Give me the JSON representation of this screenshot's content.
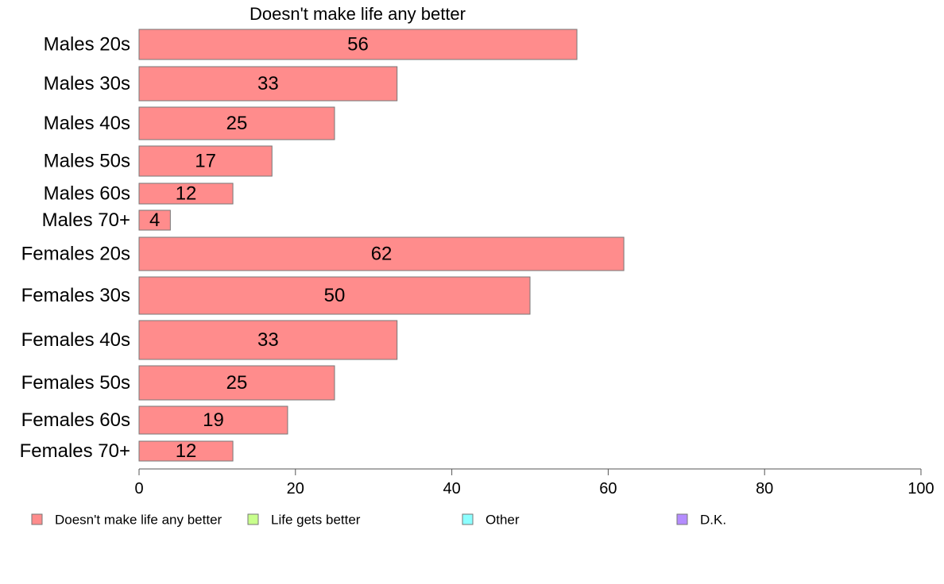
{
  "chart_data": {
    "type": "bar",
    "orientation": "horizontal",
    "title": "Doesn't make life any better",
    "categories": [
      "Males 20s",
      "Males 30s",
      "Males 40s",
      "Males 50s",
      "Males 60s",
      "Males 70+",
      "Females 20s",
      "Females 30s",
      "Females 40s",
      "Females 50s",
      "Females 60s",
      "Females 70+"
    ],
    "series": [
      {
        "name": "Doesn't make life any better",
        "color": "#ff8c8c",
        "values": [
          56,
          33,
          25,
          17,
          12,
          4,
          62,
          50,
          33,
          25,
          19,
          12
        ],
        "labels": [
          "56",
          "33",
          "25",
          "17",
          "12",
          "4",
          "62",
          "50",
          "33",
          "25",
          "19",
          "12"
        ]
      }
    ],
    "xlim": [
      0,
      100
    ],
    "xticks": [
      "0",
      "20",
      "40",
      "60",
      "80",
      "100"
    ],
    "grid": false,
    "legend_position": "bottom",
    "legend": [
      {
        "label": "Doesn't make life any better",
        "color": "#ff8c8c"
      },
      {
        "label": "Life gets better",
        "color": "#c8ff8c"
      },
      {
        "label": "Other",
        "color": "#8cffff"
      },
      {
        "label": "D.K.",
        "color": "#b48cff"
      }
    ]
  }
}
